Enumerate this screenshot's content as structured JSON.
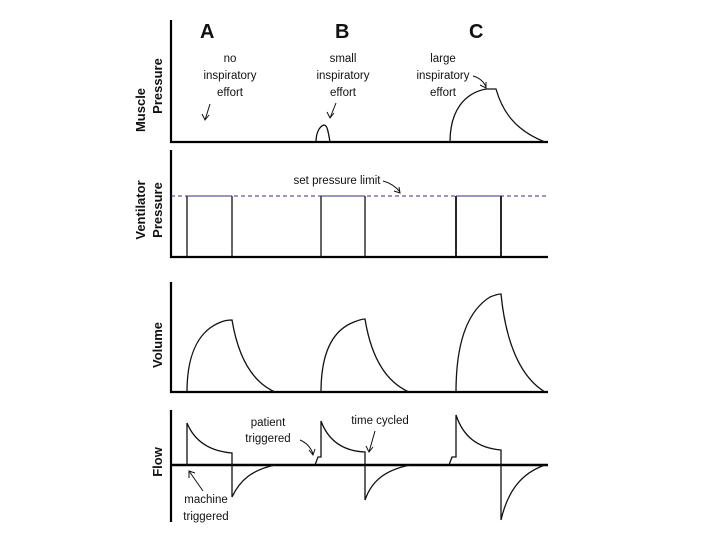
{
  "columns": [
    "A",
    "B",
    "C"
  ],
  "panels": {
    "muscle": [
      "Muscle",
      "Pressure"
    ],
    "ventilator": [
      "Ventilator",
      "Pressure"
    ],
    "volume": [
      "Volume"
    ],
    "flow": [
      "Flow"
    ]
  },
  "annotations": {
    "no_effort": [
      "no",
      "inspiratory",
      "effort"
    ],
    "small_effort": [
      "small",
      "inspiratory",
      "effort"
    ],
    "large_effort": [
      "large",
      "inspiratory",
      "effort"
    ],
    "set_pressure_limit": "set pressure limit",
    "patient_triggered": [
      "patient",
      "triggered"
    ],
    "time_cycled": "time cycled",
    "machine_triggered": [
      "machine",
      "triggered"
    ]
  }
}
